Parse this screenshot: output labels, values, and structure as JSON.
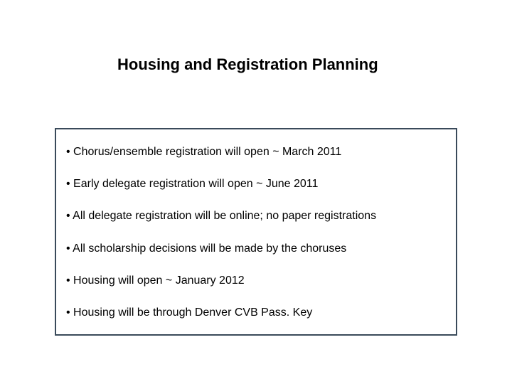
{
  "slide": {
    "title": "Housing and Registration Planning",
    "bullets": [
      "• Chorus/ensemble registration will open ~ March 2011",
      "• Early delegate registration will open ~ June 2011",
      "• All delegate registration will be online; no paper registrations",
      "• All scholarship decisions will be made by the choruses",
      "• Housing will open ~ January 2012",
      "• Housing will be through Denver CVB Pass. Key"
    ],
    "styling": {
      "background_color": "#ffffff",
      "title_fontsize": 22,
      "title_color": "#000000",
      "title_weight": "bold",
      "body_fontsize": 16,
      "body_color": "#000000",
      "box_border_color": "#3a4a5a",
      "box_border_width": 2
    }
  }
}
